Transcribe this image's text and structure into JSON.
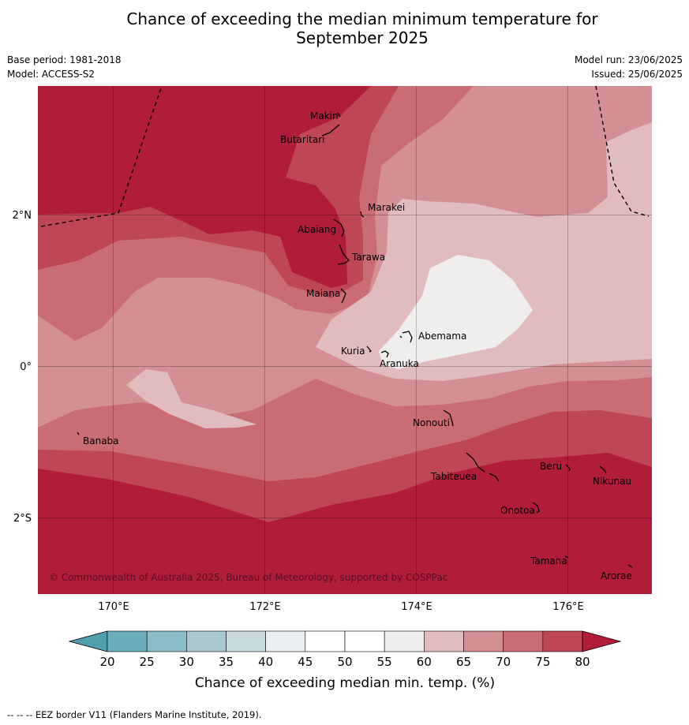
{
  "title": {
    "line1": "Chance of exceeding the median minimum temperature for",
    "line2": "September 2025"
  },
  "meta": {
    "base_period": "Base period: 1981-2018",
    "model": "Model: ACCESS-S2",
    "model_run": "Model run: 23/06/2025",
    "issued": "Issued: 25/06/2025"
  },
  "map": {
    "copyright": "© Commonwealth of Australia 2025, Bureau of Meteorology, supported by COSPPac",
    "lat_labels": [
      "2°N",
      "0°",
      "2°S"
    ],
    "lon_labels": [
      "170°E",
      "172°E",
      "174°E",
      "176°E"
    ],
    "places": [
      "Makin",
      "Butaritari",
      "Marakei",
      "Abaiang",
      "Tarawa",
      "Maiana",
      "Abemama",
      "Kuria",
      "Aranuka",
      "Nonouti",
      "Banaba",
      "Tabiteuea",
      "Beru",
      "Nikunau",
      "Onotoa",
      "Tamana",
      "Arorae"
    ]
  },
  "colorbar": {
    "label": "Chance of exceeding median min. temp. (%)",
    "ticks": [
      "20",
      "25",
      "30",
      "35",
      "40",
      "45",
      "50",
      "55",
      "60",
      "65",
      "70",
      "75",
      "80"
    ],
    "colors": [
      "#6aaebd",
      "#8cbcc7",
      "#aac9cf",
      "#c8dade",
      "#eaf0f2",
      "#ffffff",
      "#ffffff",
      "#f0eeec",
      "#e1bcbf",
      "#d48f95",
      "#c96c75",
      "#be4657"
    ],
    "under_color": "#4f9fae",
    "over_color": "#b01c3a"
  },
  "footnote": "--  --  -- EEZ border V11 (Flanders Marine Institute, 2019)."
}
